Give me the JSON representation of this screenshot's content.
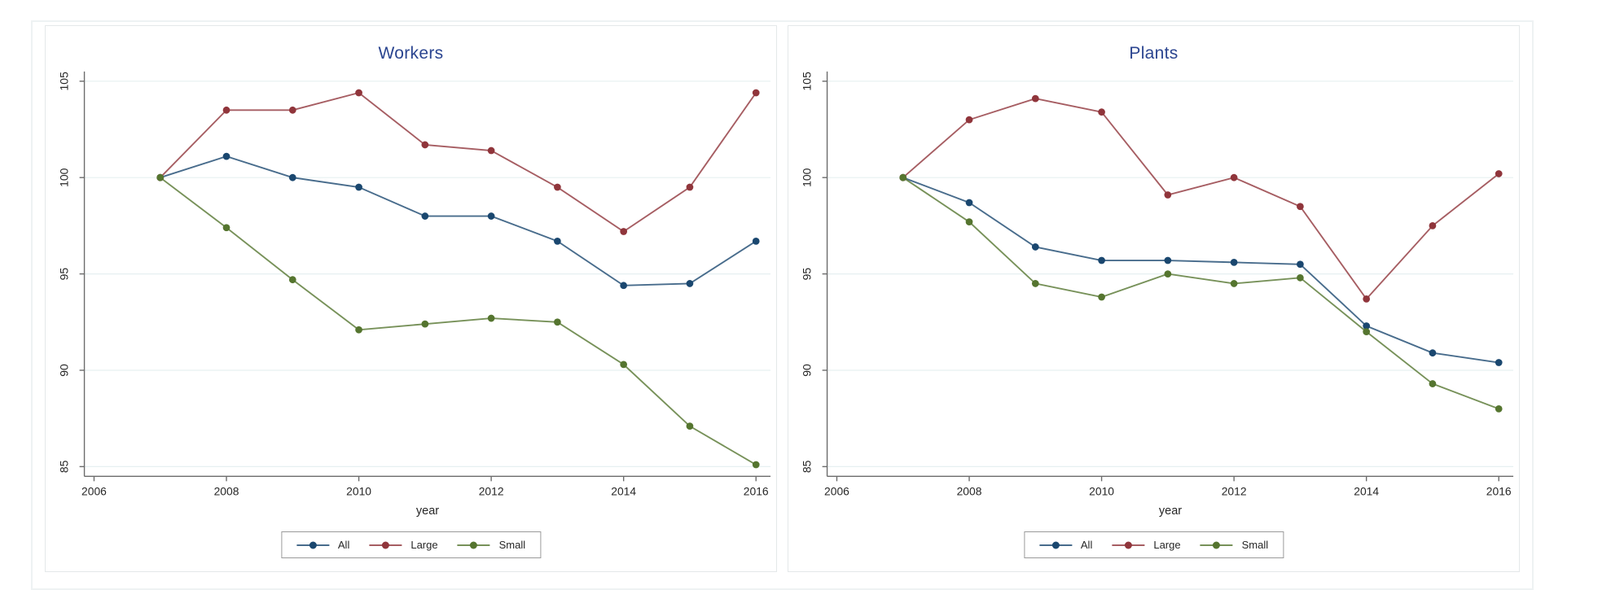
{
  "accent_colors": {
    "navy": "#1a476f",
    "maroon": "#90353b",
    "green": "#55752f",
    "title_blue": "#2b4590",
    "grid": "#e6f0f1",
    "axis": "#6b6b6b"
  },
  "chart_data": [
    {
      "type": "line",
      "title": "Workers",
      "xlabel": "year",
      "xlim": [
        2006,
        2016
      ],
      "ylim": [
        85,
        105
      ],
      "grid": true,
      "legend_position": "bottom",
      "x_ticks": [
        2006,
        2008,
        2010,
        2012,
        2014,
        2016
      ],
      "y_ticks": [
        85,
        90,
        95,
        100,
        105
      ],
      "x": [
        2007,
        2008,
        2009,
        2010,
        2011,
        2012,
        2013,
        2014,
        2015,
        2016
      ],
      "series": [
        {
          "name": "All",
          "color": "#1a476f",
          "values": [
            100,
            101.1,
            100,
            99.5,
            98,
            98,
            96.7,
            94.4,
            94.5,
            96.7
          ]
        },
        {
          "name": "Large",
          "color": "#90353b",
          "values": [
            100,
            103.5,
            103.5,
            104.4,
            101.7,
            101.4,
            99.5,
            97.2,
            99.5,
            104.4
          ]
        },
        {
          "name": "Small",
          "color": "#55752f",
          "values": [
            100,
            97.4,
            94.7,
            92.1,
            92.4,
            92.7,
            92.5,
            90.3,
            87.1,
            85.1
          ]
        }
      ]
    },
    {
      "type": "line",
      "title": "Plants",
      "xlabel": "year",
      "xlim": [
        2006,
        2016
      ],
      "ylim": [
        85,
        105
      ],
      "grid": true,
      "legend_position": "bottom",
      "x_ticks": [
        2006,
        2008,
        2010,
        2012,
        2014,
        2016
      ],
      "y_ticks": [
        85,
        90,
        95,
        100,
        105
      ],
      "x": [
        2007,
        2008,
        2009,
        2010,
        2011,
        2012,
        2013,
        2014,
        2015,
        2016
      ],
      "series": [
        {
          "name": "All",
          "color": "#1a476f",
          "values": [
            100,
            98.7,
            96.4,
            95.7,
            95.7,
            95.6,
            95.5,
            92.3,
            90.9,
            90.4
          ]
        },
        {
          "name": "Large",
          "color": "#90353b",
          "values": [
            100,
            103,
            104.1,
            103.4,
            99.1,
            100,
            98.5,
            93.7,
            97.5,
            100.2
          ]
        },
        {
          "name": "Small",
          "color": "#55752f",
          "values": [
            100,
            97.7,
            94.5,
            93.8,
            95,
            94.5,
            94.8,
            92,
            89.3,
            88
          ]
        }
      ]
    }
  ]
}
